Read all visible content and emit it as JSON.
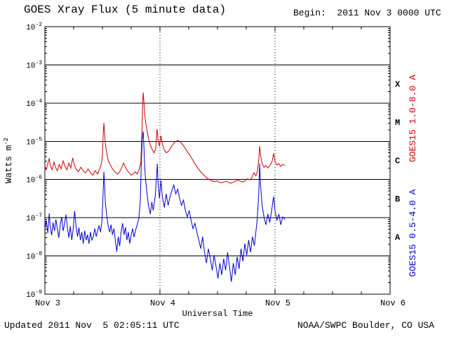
{
  "header": {
    "title": "GOES Xray Flux (5 minute data)",
    "begin": "Begin:  2011 Nov 3 0000 UTC"
  },
  "footer": {
    "updated": "Updated 2011 Nov  5 02:05:11 UTC",
    "credit": "NOAA/SWPC Boulder, CO USA"
  },
  "chart_data": {
    "type": "line",
    "title": "GOES Xray Flux (5 minute data)",
    "xlabel": "Universal Time",
    "ylabel": {
      "base": "Watts m",
      "exp": "-2"
    },
    "x_unit": "hours since 2011 Nov 3 0000 UTC",
    "xlim": [
      0,
      72
    ],
    "y_exp_max": -2,
    "y_exp_min": -9,
    "y_tick_base": "10",
    "y_tick_exponents": [
      -2,
      -3,
      -4,
      -5,
      -6,
      -7,
      -8,
      -9
    ],
    "h_grid_exponents": [
      -3,
      -4,
      -5,
      -6,
      -7,
      -8
    ],
    "v_dotted_hours": [
      24,
      48
    ],
    "x_minor_step_hours": 6,
    "x_ticks": [
      {
        "t": 0,
        "label": "Nov 3"
      },
      {
        "t": 24,
        "label": "Nov 4"
      },
      {
        "t": 48,
        "label": "Nov 5"
      },
      {
        "t": 72,
        "label": "Nov 6"
      }
    ],
    "class_bands": [
      {
        "label": "X",
        "exp": -3.5
      },
      {
        "label": "M",
        "exp": -4.5
      },
      {
        "label": "C",
        "exp": -5.5
      },
      {
        "label": "B",
        "exp": -6.5
      },
      {
        "label": "A",
        "exp": -7.5
      }
    ],
    "series": [
      {
        "id": "goes15-long",
        "name": "GOES15 1.0-8.0 A",
        "color": "#cc0000",
        "label_center_exp": -4.4,
        "points": [
          [
            0.0,
            2.2e-06
          ],
          [
            0.3,
            1.8e-06
          ],
          [
            0.6,
            2.6e-06
          ],
          [
            0.9,
            3.6e-06
          ],
          [
            1.1,
            2.4e-06
          ],
          [
            1.5,
            1.8e-06
          ],
          [
            1.9,
            2.9e-06
          ],
          [
            2.2,
            2.1e-06
          ],
          [
            2.6,
            1.7e-06
          ],
          [
            3.0,
            2.5e-06
          ],
          [
            3.4,
            1.9e-06
          ],
          [
            3.8,
            3.1e-06
          ],
          [
            4.2,
            2.2e-06
          ],
          [
            4.6,
            1.8e-06
          ],
          [
            5.0,
            2.7e-06
          ],
          [
            5.4,
            2e-06
          ],
          [
            5.8,
            3.7e-06
          ],
          [
            6.1,
            2.5e-06
          ],
          [
            6.5,
            1.9e-06
          ],
          [
            7.0,
            1.6e-06
          ],
          [
            7.5,
            2.1e-06
          ],
          [
            8.0,
            1.7e-06
          ],
          [
            8.5,
            1.5e-06
          ],
          [
            9.0,
            1.9e-06
          ],
          [
            9.5,
            1.5e-06
          ],
          [
            10.0,
            1.3e-06
          ],
          [
            10.5,
            1.7e-06
          ],
          [
            11.0,
            1.4e-06
          ],
          [
            11.4,
            1.9e-06
          ],
          [
            11.8,
            2.6e-06
          ],
          [
            12.0,
            4.5e-06
          ],
          [
            12.15,
            1.3e-05
          ],
          [
            12.3,
            3e-05
          ],
          [
            12.45,
            1.7e-05
          ],
          [
            12.6,
            8.5e-06
          ],
          [
            12.9,
            4.8e-06
          ],
          [
            13.2,
            3.2e-06
          ],
          [
            13.6,
            2.5e-06
          ],
          [
            14.0,
            2e-06
          ],
          [
            14.4,
            1.7e-06
          ],
          [
            14.8,
            1.5e-06
          ],
          [
            15.2,
            1.4e-06
          ],
          [
            15.6,
            1.6e-06
          ],
          [
            16.0,
            2e-06
          ],
          [
            16.4,
            2.7e-06
          ],
          [
            16.8,
            2.1e-06
          ],
          [
            17.2,
            1.7e-06
          ],
          [
            17.6,
            1.5e-06
          ],
          [
            18.0,
            1.3e-06
          ],
          [
            18.4,
            1.4e-06
          ],
          [
            18.8,
            1.6e-06
          ],
          [
            19.2,
            1.4e-06
          ],
          [
            19.6,
            1.7e-06
          ],
          [
            20.0,
            2.8e-06
          ],
          [
            20.2,
            1.2e-05
          ],
          [
            20.35,
            7e-05
          ],
          [
            20.5,
            0.00019
          ],
          [
            20.65,
            0.00011
          ],
          [
            20.8,
            5.5e-05
          ],
          [
            21.0,
            3.2e-05
          ],
          [
            21.3,
            1.9e-05
          ],
          [
            21.6,
            1.2e-05
          ],
          [
            22.0,
            8e-06
          ],
          [
            22.4,
            6e-06
          ],
          [
            22.8,
            5e-06
          ],
          [
            23.1,
            6.5e-06
          ],
          [
            23.4,
            2.1e-05
          ],
          [
            23.6,
            1.1e-05
          ],
          [
            23.9,
            7.5e-06
          ],
          [
            24.2,
            1.4e-05
          ],
          [
            24.5,
            8.5e-06
          ],
          [
            24.9,
            6e-06
          ],
          [
            25.3,
            5e-06
          ],
          [
            25.8,
            5.5e-06
          ],
          [
            26.3,
            7e-06
          ],
          [
            26.8,
            8.5e-06
          ],
          [
            27.3,
            1e-05
          ],
          [
            27.8,
            1.05e-05
          ],
          [
            28.3,
            9.5e-06
          ],
          [
            28.8,
            8e-06
          ],
          [
            29.3,
            6.5e-06
          ],
          [
            29.8,
            5.2e-06
          ],
          [
            30.3,
            4.2e-06
          ],
          [
            30.8,
            3.3e-06
          ],
          [
            31.3,
            2.6e-06
          ],
          [
            31.8,
            2.1e-06
          ],
          [
            32.3,
            1.7e-06
          ],
          [
            32.8,
            1.45e-06
          ],
          [
            33.3,
            1.25e-06
          ],
          [
            33.8,
            1.1e-06
          ],
          [
            34.3,
            1e-06
          ],
          [
            34.8,
            9.3e-07
          ],
          [
            35.3,
            8.8e-07
          ],
          [
            35.8,
            9.2e-07
          ],
          [
            36.3,
            8.6e-07
          ],
          [
            36.8,
            8.2e-07
          ],
          [
            37.3,
            8.6e-07
          ],
          [
            37.8,
            9e-07
          ],
          [
            38.3,
            8.4e-07
          ],
          [
            38.8,
            8e-07
          ],
          [
            39.3,
            8.5e-07
          ],
          [
            39.8,
            9.2e-07
          ],
          [
            40.3,
            9.6e-07
          ],
          [
            40.8,
            9e-07
          ],
          [
            41.3,
            8.6e-07
          ],
          [
            41.8,
            9.4e-07
          ],
          [
            42.3,
            1.05e-06
          ],
          [
            42.8,
            9.8e-07
          ],
          [
            43.2,
            1.15e-06
          ],
          [
            43.6,
            1.5e-06
          ],
          [
            44.0,
            1.25e-06
          ],
          [
            44.3,
            1.6e-06
          ],
          [
            44.6,
            3.2e-06
          ],
          [
            44.8,
            7.5e-06
          ],
          [
            45.0,
            4.2e-06
          ],
          [
            45.3,
            2.6e-06
          ],
          [
            45.7,
            2.1e-06
          ],
          [
            46.1,
            2.3e-06
          ],
          [
            46.5,
            2e-06
          ],
          [
            47.0,
            2.4e-06
          ],
          [
            47.4,
            3e-06
          ],
          [
            47.7,
            4.8e-06
          ],
          [
            48.0,
            3e-06
          ],
          [
            48.4,
            2.4e-06
          ],
          [
            48.8,
            2.6e-06
          ],
          [
            49.2,
            2.2e-06
          ],
          [
            49.6,
            2.5e-06
          ],
          [
            50.1,
            2.3e-06
          ]
        ]
      },
      {
        "id": "goes15-short",
        "name": "GOES15 0.5-4.0 A",
        "color": "#0000cc",
        "label_center_exp": -7.4,
        "points": [
          [
            0.0,
            5e-08
          ],
          [
            0.3,
            8.5e-08
          ],
          [
            0.6,
            4e-08
          ],
          [
            0.9,
            1.3e-07
          ],
          [
            1.1,
            6e-08
          ],
          [
            1.4,
            3.5e-08
          ],
          [
            1.7,
            7.5e-08
          ],
          [
            2.0,
            4.5e-08
          ],
          [
            2.3,
            9e-08
          ],
          [
            2.6,
            5e-08
          ],
          [
            2.9,
            3e-08
          ],
          [
            3.2,
            6.5e-08
          ],
          [
            3.5,
            1.05e-07
          ],
          [
            3.8,
            4.5e-08
          ],
          [
            4.1,
            7e-08
          ],
          [
            4.4,
            1.2e-07
          ],
          [
            4.7,
            5.5e-08
          ],
          [
            5.0,
            3e-08
          ],
          [
            5.3,
            6e-08
          ],
          [
            5.6,
            2.6e-08
          ],
          [
            5.9,
            5e-08
          ],
          [
            6.2,
            1.5e-07
          ],
          [
            6.5,
            6e-08
          ],
          [
            6.8,
            3.2e-08
          ],
          [
            7.1,
            5.5e-08
          ],
          [
            7.4,
            2.6e-08
          ],
          [
            7.7,
            4.2e-08
          ],
          [
            8.0,
            2.1e-08
          ],
          [
            8.3,
            4.6e-08
          ],
          [
            8.6,
            2.6e-08
          ],
          [
            8.9,
            3.6e-08
          ],
          [
            9.2,
            2.1e-08
          ],
          [
            9.5,
            4.2e-08
          ],
          [
            9.8,
            2.6e-08
          ],
          [
            10.1,
            3.2e-08
          ],
          [
            10.4,
            5.2e-08
          ],
          [
            10.7,
            3.2e-08
          ],
          [
            11.0,
            4.6e-08
          ],
          [
            11.3,
            6.2e-08
          ],
          [
            11.6,
            4.2e-08
          ],
          [
            11.9,
            8.5e-08
          ],
          [
            12.1,
            3.2e-07
          ],
          [
            12.3,
            1.6e-06
          ],
          [
            12.45,
            7e-07
          ],
          [
            12.6,
            2.6e-07
          ],
          [
            12.9,
            1.1e-07
          ],
          [
            13.2,
            6.2e-08
          ],
          [
            13.5,
            4.2e-08
          ],
          [
            13.8,
            6.6e-08
          ],
          [
            14.1,
            3.6e-08
          ],
          [
            14.4,
            5.2e-08
          ],
          [
            14.7,
            2.6e-08
          ],
          [
            15.0,
            1.3e-08
          ],
          [
            15.3,
            3.2e-08
          ],
          [
            15.6,
            1.8e-08
          ],
          [
            15.9,
            4.2e-08
          ],
          [
            16.2,
            7.2e-08
          ],
          [
            16.5,
            3.6e-08
          ],
          [
            16.8,
            5.6e-08
          ],
          [
            17.1,
            2.6e-08
          ],
          [
            17.4,
            4.2e-08
          ],
          [
            17.7,
            2.1e-08
          ],
          [
            18.0,
            3.6e-08
          ],
          [
            18.3,
            5.2e-08
          ],
          [
            18.6,
            3.1e-08
          ],
          [
            18.9,
            4.6e-08
          ],
          [
            19.2,
            6.2e-08
          ],
          [
            19.6,
            9.5e-08
          ],
          [
            19.9,
            2.8e-07
          ],
          [
            20.1,
            2.2e-06
          ],
          [
            20.3,
            1.15e-05
          ],
          [
            20.5,
            1.8e-05
          ],
          [
            20.65,
            7.5e-06
          ],
          [
            20.8,
            2.4e-06
          ],
          [
            21.0,
            1e-06
          ],
          [
            21.3,
            4.2e-07
          ],
          [
            21.6,
            2.1e-07
          ],
          [
            22.0,
            1.25e-07
          ],
          [
            22.3,
            2.6e-07
          ],
          [
            22.6,
            1.55e-07
          ],
          [
            23.0,
            3.6e-07
          ],
          [
            23.3,
            1.25e-06
          ],
          [
            23.45,
            2.6e-06
          ],
          [
            23.6,
            8.5e-07
          ],
          [
            23.9,
            3.2e-07
          ],
          [
            24.2,
            9.5e-07
          ],
          [
            24.5,
            3.6e-07
          ],
          [
            24.9,
            1.85e-07
          ],
          [
            25.3,
            4.2e-07
          ],
          [
            25.7,
            2.1e-07
          ],
          [
            26.1,
            3.6e-07
          ],
          [
            26.5,
            5.2e-07
          ],
          [
            26.9,
            7.2e-07
          ],
          [
            27.3,
            4.2e-07
          ],
          [
            27.7,
            5.6e-07
          ],
          [
            28.1,
            3.2e-07
          ],
          [
            28.5,
            2.1e-07
          ],
          [
            28.9,
            2.9e-07
          ],
          [
            29.3,
            1.55e-07
          ],
          [
            29.7,
            1.05e-07
          ],
          [
            30.1,
            1.55e-07
          ],
          [
            30.5,
            8.5e-08
          ],
          [
            30.9,
            5.2e-08
          ],
          [
            31.3,
            7.2e-08
          ],
          [
            31.7,
            4.2e-08
          ],
          [
            32.1,
            2.6e-08
          ],
          [
            32.5,
            1.55e-08
          ],
          [
            32.9,
            3.2e-08
          ],
          [
            33.3,
            1.25e-08
          ],
          [
            33.7,
            6.5e-09
          ],
          [
            34.1,
            1.55e-08
          ],
          [
            34.5,
            8.5e-09
          ],
          [
            34.9,
            4.2e-09
          ],
          [
            35.3,
            1.05e-08
          ],
          [
            35.7,
            5.2e-09
          ],
          [
            36.1,
            2.6e-09
          ],
          [
            36.5,
            6.5e-09
          ],
          [
            36.9,
            3.2e-09
          ],
          [
            37.3,
            8.5e-09
          ],
          [
            37.7,
            4.2e-09
          ],
          [
            38.1,
            1.25e-08
          ],
          [
            38.5,
            5.2e-09
          ],
          [
            38.9,
            2.1e-09
          ],
          [
            39.3,
            6.5e-09
          ],
          [
            39.7,
            3.2e-09
          ],
          [
            40.1,
            9.5e-09
          ],
          [
            40.5,
            4.6e-09
          ],
          [
            40.9,
            1.55e-08
          ],
          [
            41.3,
            7.2e-09
          ],
          [
            41.7,
            2.1e-08
          ],
          [
            42.1,
            1.05e-08
          ],
          [
            42.5,
            2.6e-08
          ],
          [
            42.9,
            1.25e-08
          ],
          [
            43.3,
            3.2e-08
          ],
          [
            43.7,
            1.85e-08
          ],
          [
            44.0,
            4.2e-08
          ],
          [
            44.3,
            9.5e-08
          ],
          [
            44.6,
            4.2e-07
          ],
          [
            44.8,
            2.6e-06
          ],
          [
            45.0,
            6.5e-07
          ],
          [
            45.3,
            2.1e-07
          ],
          [
            45.7,
            1.05e-07
          ],
          [
            46.1,
            6.5e-08
          ],
          [
            46.5,
            1.25e-07
          ],
          [
            46.9,
            7.5e-08
          ],
          [
            47.3,
            1.55e-07
          ],
          [
            47.7,
            3.6e-07
          ],
          [
            48.0,
            1.55e-07
          ],
          [
            48.4,
            8.5e-08
          ],
          [
            48.8,
            1.25e-07
          ],
          [
            49.2,
            6.5e-08
          ],
          [
            49.6,
            1.05e-07
          ],
          [
            50.1,
            9e-08
          ]
        ]
      }
    ]
  }
}
